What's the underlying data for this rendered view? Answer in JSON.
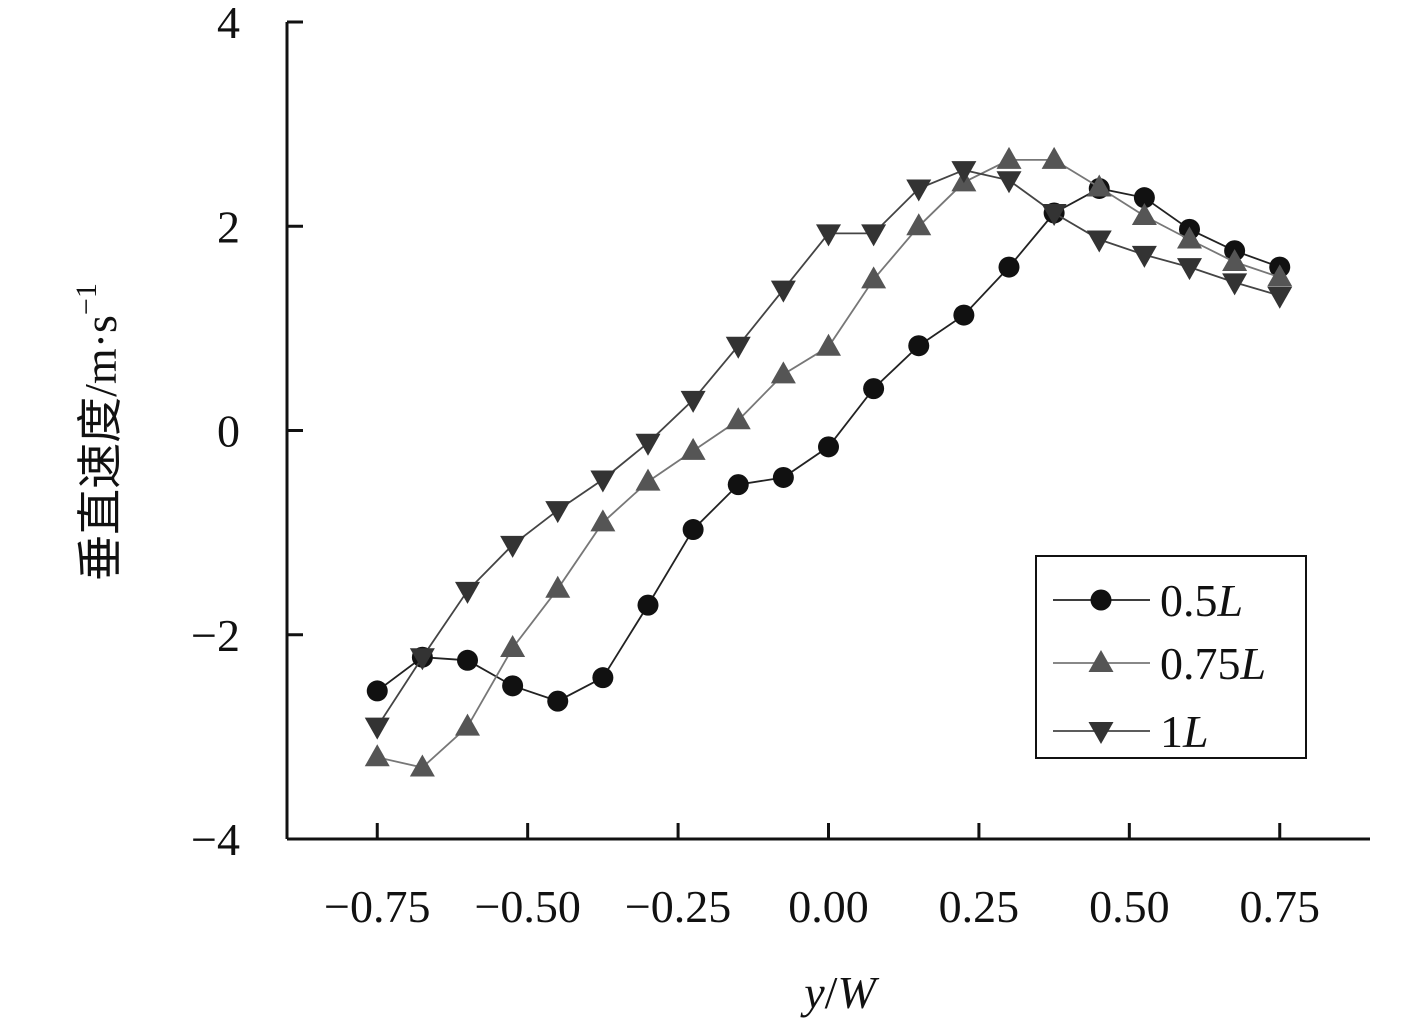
{
  "chart_data": {
    "type": "line",
    "xlabel_parts": [
      "y",
      "/",
      "W"
    ],
    "ylabel_main": "垂直速度/m·s",
    "ylabel_sup": "−1",
    "xlim": [
      -0.9,
      0.9
    ],
    "ylim": [
      -4,
      4
    ],
    "x_ticks": [
      -0.75,
      -0.5,
      -0.25,
      0.0,
      0.25,
      0.5,
      0.75
    ],
    "x_tick_labels": [
      "−0.75",
      "−0.50",
      "−0.25",
      "0.00",
      "0.25",
      "0.50",
      "0.75"
    ],
    "y_ticks": [
      -4,
      -2,
      0,
      2,
      4
    ],
    "y_tick_labels": [
      "−4",
      "−2",
      "0",
      "2",
      "4"
    ],
    "legend_position": "lower-right",
    "x": [
      -0.75,
      -0.675,
      -0.6,
      -0.525,
      -0.45,
      -0.375,
      -0.3,
      -0.225,
      -0.15,
      -0.075,
      0.0,
      0.075,
      0.15,
      0.225,
      0.3,
      0.375,
      0.45,
      0.525,
      0.6,
      0.675,
      0.75
    ],
    "series": [
      {
        "name_num": "0.5",
        "name_var": "L",
        "marker": "circle",
        "color": "#111111",
        "line_color": "#222222",
        "values": [
          -2.55,
          -2.22,
          -2.25,
          -2.5,
          -2.65,
          -2.42,
          -1.71,
          -0.97,
          -0.53,
          -0.46,
          -0.16,
          0.41,
          0.83,
          1.13,
          1.6,
          2.13,
          2.37,
          2.28,
          1.97,
          1.76,
          1.6
        ]
      },
      {
        "name_num": "0.75",
        "name_var": "L",
        "marker": "triangle-up",
        "color": "#555555",
        "line_color": "#777777",
        "values": [
          -3.2,
          -3.3,
          -2.9,
          -2.13,
          -1.55,
          -0.9,
          -0.5,
          -0.2,
          0.1,
          0.55,
          0.82,
          1.48,
          2.0,
          2.43,
          2.65,
          2.65,
          2.38,
          2.1,
          1.87,
          1.65,
          1.5
        ]
      },
      {
        "name_num": "1",
        "name_var": "L",
        "marker": "triangle-down",
        "color": "#333333",
        "line_color": "#444444",
        "values": [
          -2.9,
          -2.22,
          -1.57,
          -1.12,
          -0.78,
          -0.48,
          -0.12,
          0.3,
          0.83,
          1.38,
          1.93,
          1.93,
          2.37,
          2.55,
          2.45,
          2.13,
          1.87,
          1.72,
          1.6,
          1.45,
          1.32
        ]
      }
    ]
  }
}
